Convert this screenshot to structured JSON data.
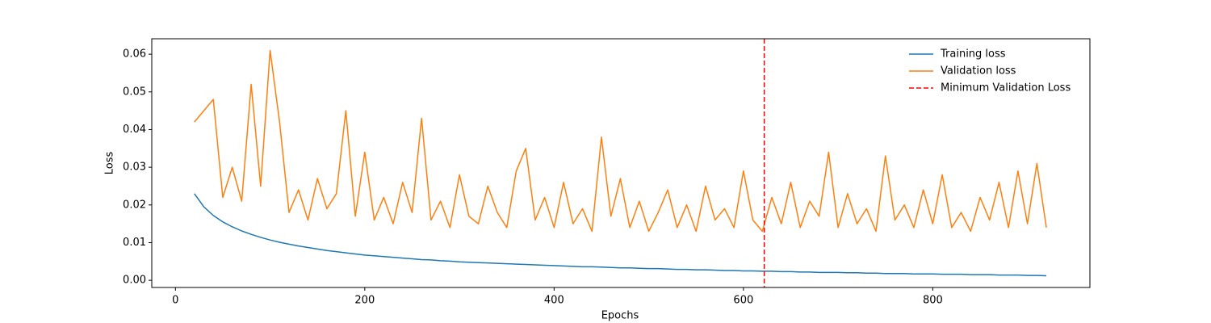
{
  "chart_data": {
    "type": "line",
    "xlabel": "Epochs",
    "ylabel": "Loss",
    "x": [
      20,
      30,
      40,
      50,
      60,
      70,
      80,
      90,
      100,
      110,
      120,
      130,
      140,
      150,
      160,
      170,
      180,
      190,
      200,
      210,
      220,
      230,
      240,
      250,
      260,
      270,
      280,
      290,
      300,
      310,
      320,
      330,
      340,
      350,
      360,
      370,
      380,
      390,
      400,
      410,
      420,
      430,
      440,
      450,
      460,
      470,
      480,
      490,
      500,
      510,
      520,
      530,
      540,
      550,
      560,
      570,
      580,
      590,
      600,
      610,
      620,
      630,
      640,
      650,
      660,
      670,
      680,
      690,
      700,
      710,
      720,
      730,
      740,
      750,
      760,
      770,
      780,
      790,
      800,
      810,
      820,
      830,
      840,
      850,
      860,
      870,
      880,
      890,
      900,
      910,
      920
    ],
    "series": [
      {
        "name": "Training loss",
        "color": "#1f77b4",
        "values": [
          0.023,
          0.0195,
          0.0172,
          0.0155,
          0.0142,
          0.0131,
          0.0122,
          0.0114,
          0.0107,
          0.0101,
          0.0096,
          0.0091,
          0.0087,
          0.0083,
          0.0079,
          0.0076,
          0.0073,
          0.007,
          0.0067,
          0.0065,
          0.0063,
          0.0061,
          0.0059,
          0.0057,
          0.0055,
          0.0054,
          0.0052,
          0.0051,
          0.0049,
          0.0048,
          0.0047,
          0.0046,
          0.0045,
          0.0044,
          0.0043,
          0.0042,
          0.0041,
          0.004,
          0.0039,
          0.0038,
          0.0037,
          0.0036,
          0.0036,
          0.0035,
          0.0034,
          0.0033,
          0.0033,
          0.0032,
          0.0031,
          0.0031,
          0.003,
          0.0029,
          0.0029,
          0.0028,
          0.0028,
          0.0027,
          0.0026,
          0.0026,
          0.0025,
          0.0025,
          0.0024,
          0.0024,
          0.0023,
          0.0023,
          0.0022,
          0.0022,
          0.0021,
          0.0021,
          0.0021,
          0.002,
          0.002,
          0.0019,
          0.0019,
          0.0018,
          0.0018,
          0.0018,
          0.0017,
          0.0017,
          0.0017,
          0.0016,
          0.0016,
          0.0016,
          0.0015,
          0.0015,
          0.0015,
          0.0014,
          0.0014,
          0.0014,
          0.0013,
          0.0013,
          0.0012
        ]
      },
      {
        "name": "Validation loss",
        "color": "#ff7f0e",
        "values": [
          0.042,
          0.045,
          0.048,
          0.022,
          0.03,
          0.021,
          0.052,
          0.025,
          0.061,
          0.042,
          0.018,
          0.024,
          0.016,
          0.027,
          0.019,
          0.023,
          0.045,
          0.017,
          0.034,
          0.016,
          0.022,
          0.015,
          0.026,
          0.018,
          0.043,
          0.016,
          0.021,
          0.014,
          0.028,
          0.017,
          0.015,
          0.025,
          0.018,
          0.014,
          0.029,
          0.035,
          0.016,
          0.022,
          0.014,
          0.026,
          0.015,
          0.019,
          0.013,
          0.038,
          0.017,
          0.027,
          0.014,
          0.021,
          0.013,
          0.018,
          0.024,
          0.014,
          0.02,
          0.013,
          0.025,
          0.016,
          0.019,
          0.014,
          0.029,
          0.016,
          0.013,
          0.022,
          0.015,
          0.026,
          0.014,
          0.021,
          0.017,
          0.034,
          0.014,
          0.023,
          0.015,
          0.019,
          0.013,
          0.033,
          0.016,
          0.02,
          0.014,
          0.024,
          0.015,
          0.028,
          0.014,
          0.018,
          0.013,
          0.022,
          0.016,
          0.026,
          0.014,
          0.029,
          0.015,
          0.031,
          0.014
        ]
      }
    ],
    "vlines": [
      {
        "name": "Minimum Validation Loss",
        "x": 622,
        "color": "#ff0000",
        "dashed": true
      }
    ],
    "xlim": [
      -25,
      966
    ],
    "ylim": [
      -0.0019,
      0.0641
    ],
    "xticks": [
      0,
      200,
      400,
      600,
      800
    ],
    "yticks": [
      {
        "value": 0,
        "label": "0.00"
      },
      0.01,
      0.02,
      0.03,
      0.04,
      0.05,
      0.06
    ],
    "legend": "upper right"
  }
}
